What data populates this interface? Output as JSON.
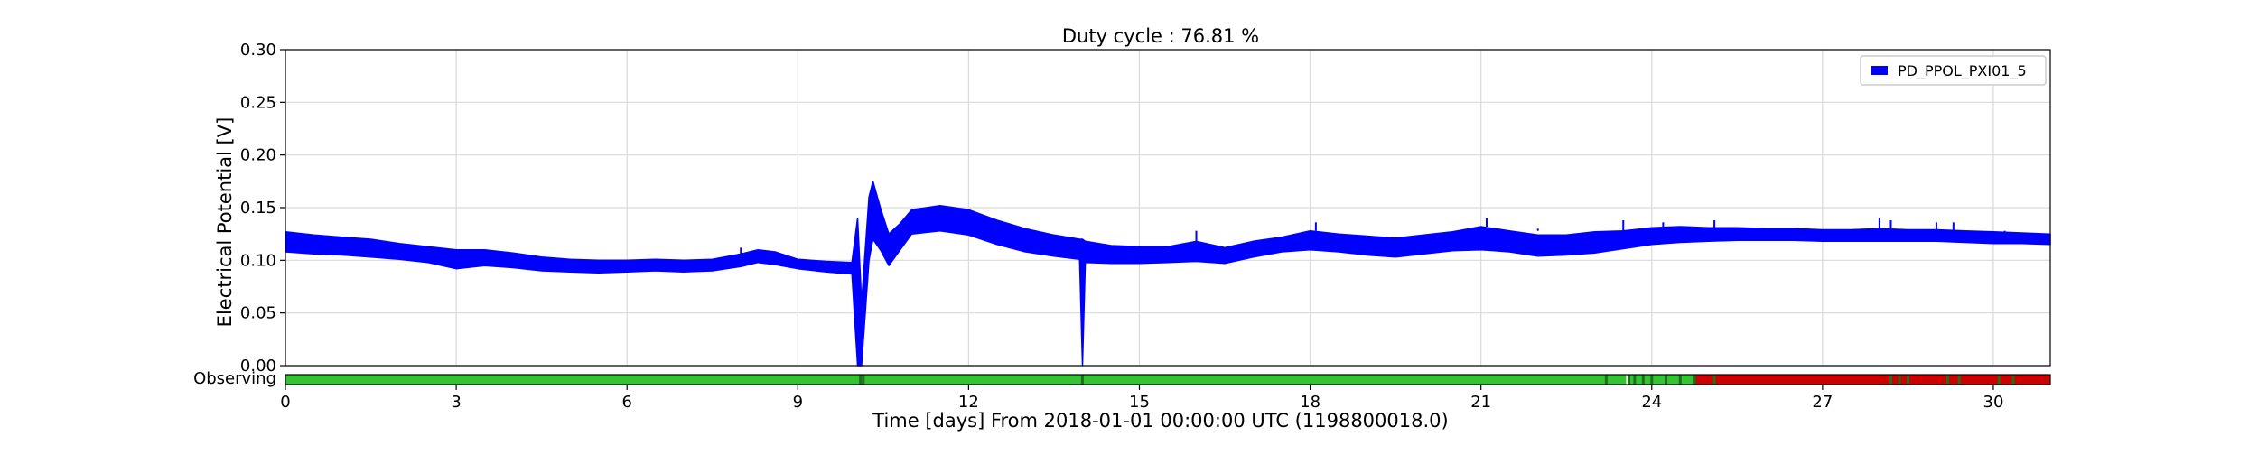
{
  "chart_data": {
    "type": "line",
    "title": "Duty cycle : 76.81 %",
    "xlabel": "Time [days] From 2018-01-01 00:00:00 UTC (1198800018.0)",
    "ylabel": "Electrical Potential [V]",
    "xlim": [
      0,
      31
    ],
    "ylim": [
      0,
      0.3
    ],
    "grid": true,
    "legend_position": "top-right",
    "x_ticks": [
      0,
      3,
      6,
      9,
      12,
      15,
      18,
      21,
      24,
      27,
      30
    ],
    "y_ticks": [
      "0.00",
      "0.05",
      "0.10",
      "0.15",
      "0.20",
      "0.25",
      "0.30"
    ],
    "series": [
      {
        "name": "PD_PPOL_PXI01_5",
        "color": "#0000ff",
        "band": [
          [
            0.0,
            0.108,
            0.127
          ],
          [
            0.5,
            0.106,
            0.124
          ],
          [
            1.0,
            0.105,
            0.122
          ],
          [
            1.5,
            0.103,
            0.12
          ],
          [
            2.0,
            0.101,
            0.116
          ],
          [
            2.5,
            0.098,
            0.113
          ],
          [
            3.0,
            0.092,
            0.11
          ],
          [
            3.5,
            0.095,
            0.11
          ],
          [
            4.0,
            0.093,
            0.107
          ],
          [
            4.5,
            0.09,
            0.103
          ],
          [
            5.0,
            0.089,
            0.101
          ],
          [
            5.5,
            0.088,
            0.1
          ],
          [
            6.0,
            0.089,
            0.1
          ],
          [
            6.5,
            0.09,
            0.101
          ],
          [
            7.0,
            0.089,
            0.1
          ],
          [
            7.5,
            0.09,
            0.101
          ],
          [
            8.0,
            0.094,
            0.106
          ],
          [
            8.3,
            0.098,
            0.11
          ],
          [
            8.6,
            0.096,
            0.108
          ],
          [
            9.0,
            0.092,
            0.101
          ],
          [
            9.5,
            0.089,
            0.099
          ],
          [
            9.95,
            0.087,
            0.098
          ],
          [
            10.05,
            0.0,
            0.14
          ],
          [
            10.12,
            0.0,
            0.06
          ],
          [
            10.25,
            0.1,
            0.16
          ],
          [
            10.32,
            0.12,
            0.175
          ],
          [
            10.45,
            0.11,
            0.15
          ],
          [
            10.6,
            0.095,
            0.125
          ],
          [
            10.8,
            0.11,
            0.135
          ],
          [
            11.0,
            0.125,
            0.148
          ],
          [
            11.5,
            0.128,
            0.152
          ],
          [
            12.0,
            0.124,
            0.148
          ],
          [
            12.5,
            0.115,
            0.138
          ],
          [
            13.0,
            0.108,
            0.13
          ],
          [
            13.5,
            0.104,
            0.124
          ],
          [
            13.95,
            0.101,
            0.12
          ],
          [
            14.0,
            0.0,
            0.12
          ],
          [
            14.05,
            0.098,
            0.118
          ],
          [
            14.5,
            0.097,
            0.114
          ],
          [
            15.0,
            0.097,
            0.113
          ],
          [
            15.5,
            0.098,
            0.113
          ],
          [
            16.0,
            0.099,
            0.118
          ],
          [
            16.5,
            0.097,
            0.112
          ],
          [
            17.0,
            0.103,
            0.118
          ],
          [
            17.5,
            0.108,
            0.122
          ],
          [
            18.0,
            0.11,
            0.128
          ],
          [
            18.5,
            0.108,
            0.125
          ],
          [
            19.0,
            0.105,
            0.123
          ],
          [
            19.5,
            0.103,
            0.121
          ],
          [
            20.0,
            0.106,
            0.124
          ],
          [
            20.5,
            0.109,
            0.127
          ],
          [
            21.0,
            0.11,
            0.132
          ],
          [
            21.5,
            0.108,
            0.128
          ],
          [
            22.0,
            0.104,
            0.124
          ],
          [
            22.5,
            0.105,
            0.124
          ],
          [
            23.0,
            0.107,
            0.127
          ],
          [
            23.5,
            0.111,
            0.128
          ],
          [
            24.0,
            0.115,
            0.131
          ],
          [
            24.5,
            0.117,
            0.132
          ],
          [
            25.0,
            0.118,
            0.131
          ],
          [
            25.5,
            0.119,
            0.131
          ],
          [
            26.0,
            0.119,
            0.13
          ],
          [
            26.5,
            0.119,
            0.13
          ],
          [
            27.0,
            0.118,
            0.129
          ],
          [
            27.5,
            0.118,
            0.129
          ],
          [
            28.0,
            0.118,
            0.13
          ],
          [
            28.5,
            0.118,
            0.129
          ],
          [
            29.0,
            0.118,
            0.129
          ],
          [
            29.5,
            0.117,
            0.128
          ],
          [
            30.0,
            0.116,
            0.127
          ],
          [
            30.5,
            0.116,
            0.126
          ],
          [
            31.0,
            0.115,
            0.125
          ]
        ],
        "spikes": [
          [
            8.0,
            0.112
          ],
          [
            16.0,
            0.128
          ],
          [
            18.1,
            0.136
          ],
          [
            21.1,
            0.14
          ],
          [
            22.0,
            0.13
          ],
          [
            23.5,
            0.138
          ],
          [
            24.2,
            0.136
          ],
          [
            25.1,
            0.138
          ],
          [
            28.0,
            0.14
          ],
          [
            28.2,
            0.138
          ],
          [
            29.0,
            0.136
          ],
          [
            29.3,
            0.136
          ],
          [
            30.2,
            0.128
          ]
        ]
      }
    ],
    "segments": {
      "label": "Observing",
      "active_color": "#33c333",
      "inactive_color": "#cc0000",
      "edge_color": "#1e6e1e",
      "active": [
        [
          0,
          23.55
        ],
        [
          23.6,
          24.75
        ]
      ],
      "inactive": [
        [
          24.75,
          31
        ]
      ],
      "marks": [
        10.1,
        10.15,
        14.0,
        23.2,
        23.6,
        23.7,
        23.85,
        24.0,
        24.25,
        24.5,
        24.75,
        25.1,
        28.2,
        28.35,
        28.5,
        29.2,
        29.4,
        30.1,
        30.35
      ]
    }
  }
}
